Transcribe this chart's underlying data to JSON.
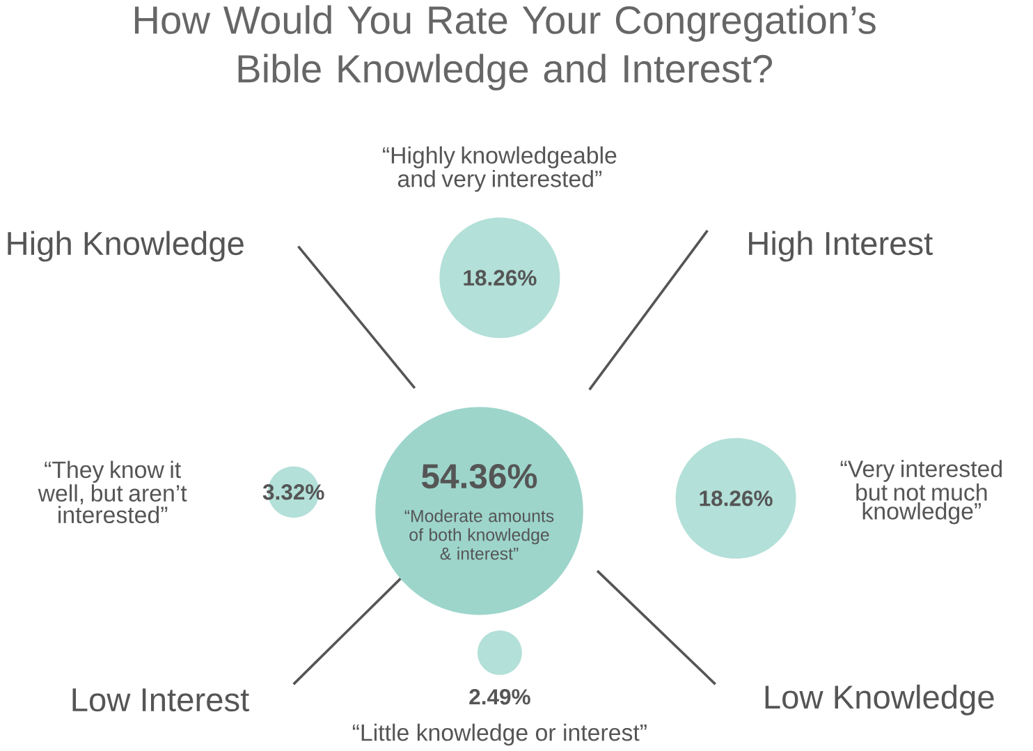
{
  "chart_data": {
    "type": "other",
    "title": "How Would You Rate Your Congregation’s Bible Knowledge and Interest?",
    "categories": [
      "“Moderate amounts of both knowledge & interest”",
      "“Highly knowledgeable and very interested”",
      "“Very interested but not much knowledge”",
      "“They know it well, but aren’t interested”",
      "“Little knowledge or interest”"
    ],
    "values": [
      54.36,
      18.26,
      18.26,
      3.32,
      2.49
    ],
    "value_labels": [
      "54.36%",
      "18.26%",
      "18.26%",
      "3.32%",
      "2.49%"
    ],
    "colors": [
      "#9dd5cb",
      "#b3e0d8",
      "#b3e0d8",
      "#b3e0d8",
      "#b3e0d8"
    ],
    "annotations": [
      "High Knowledge",
      "High Interest",
      "Low Interest",
      "Low Knowledge"
    ]
  }
}
